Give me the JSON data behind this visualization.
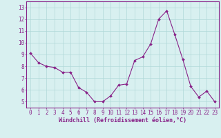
{
  "x": [
    0,
    1,
    2,
    3,
    4,
    5,
    6,
    7,
    8,
    9,
    10,
    11,
    12,
    13,
    14,
    15,
    16,
    17,
    18,
    19,
    20,
    21,
    22,
    23
  ],
  "y": [
    9.1,
    8.3,
    8.0,
    7.9,
    7.5,
    7.5,
    6.2,
    5.8,
    5.0,
    5.0,
    5.5,
    6.4,
    6.5,
    8.5,
    8.8,
    9.9,
    12.0,
    12.7,
    10.7,
    8.6,
    6.3,
    5.4,
    5.9,
    5.0
  ],
  "line_color": "#882288",
  "marker": "D",
  "marker_size": 2.0,
  "bg_color": "#d8f0f0",
  "grid_color": "#b0d8d8",
  "xlabel": "Windchill (Refroidissement éolien,°C)",
  "xlabel_color": "#882288",
  "tick_color": "#882288",
  "spine_color": "#882288",
  "ylim": [
    4.5,
    13.5
  ],
  "yticks": [
    5,
    6,
    7,
    8,
    9,
    10,
    11,
    12,
    13
  ],
  "xlim": [
    -0.5,
    23.5
  ],
  "xticks": [
    0,
    1,
    2,
    3,
    4,
    5,
    6,
    7,
    8,
    9,
    10,
    11,
    12,
    13,
    14,
    15,
    16,
    17,
    18,
    19,
    20,
    21,
    22,
    23
  ],
  "tick_fontsize": 5.5,
  "xlabel_fontsize": 6.0,
  "linewidth": 0.8
}
